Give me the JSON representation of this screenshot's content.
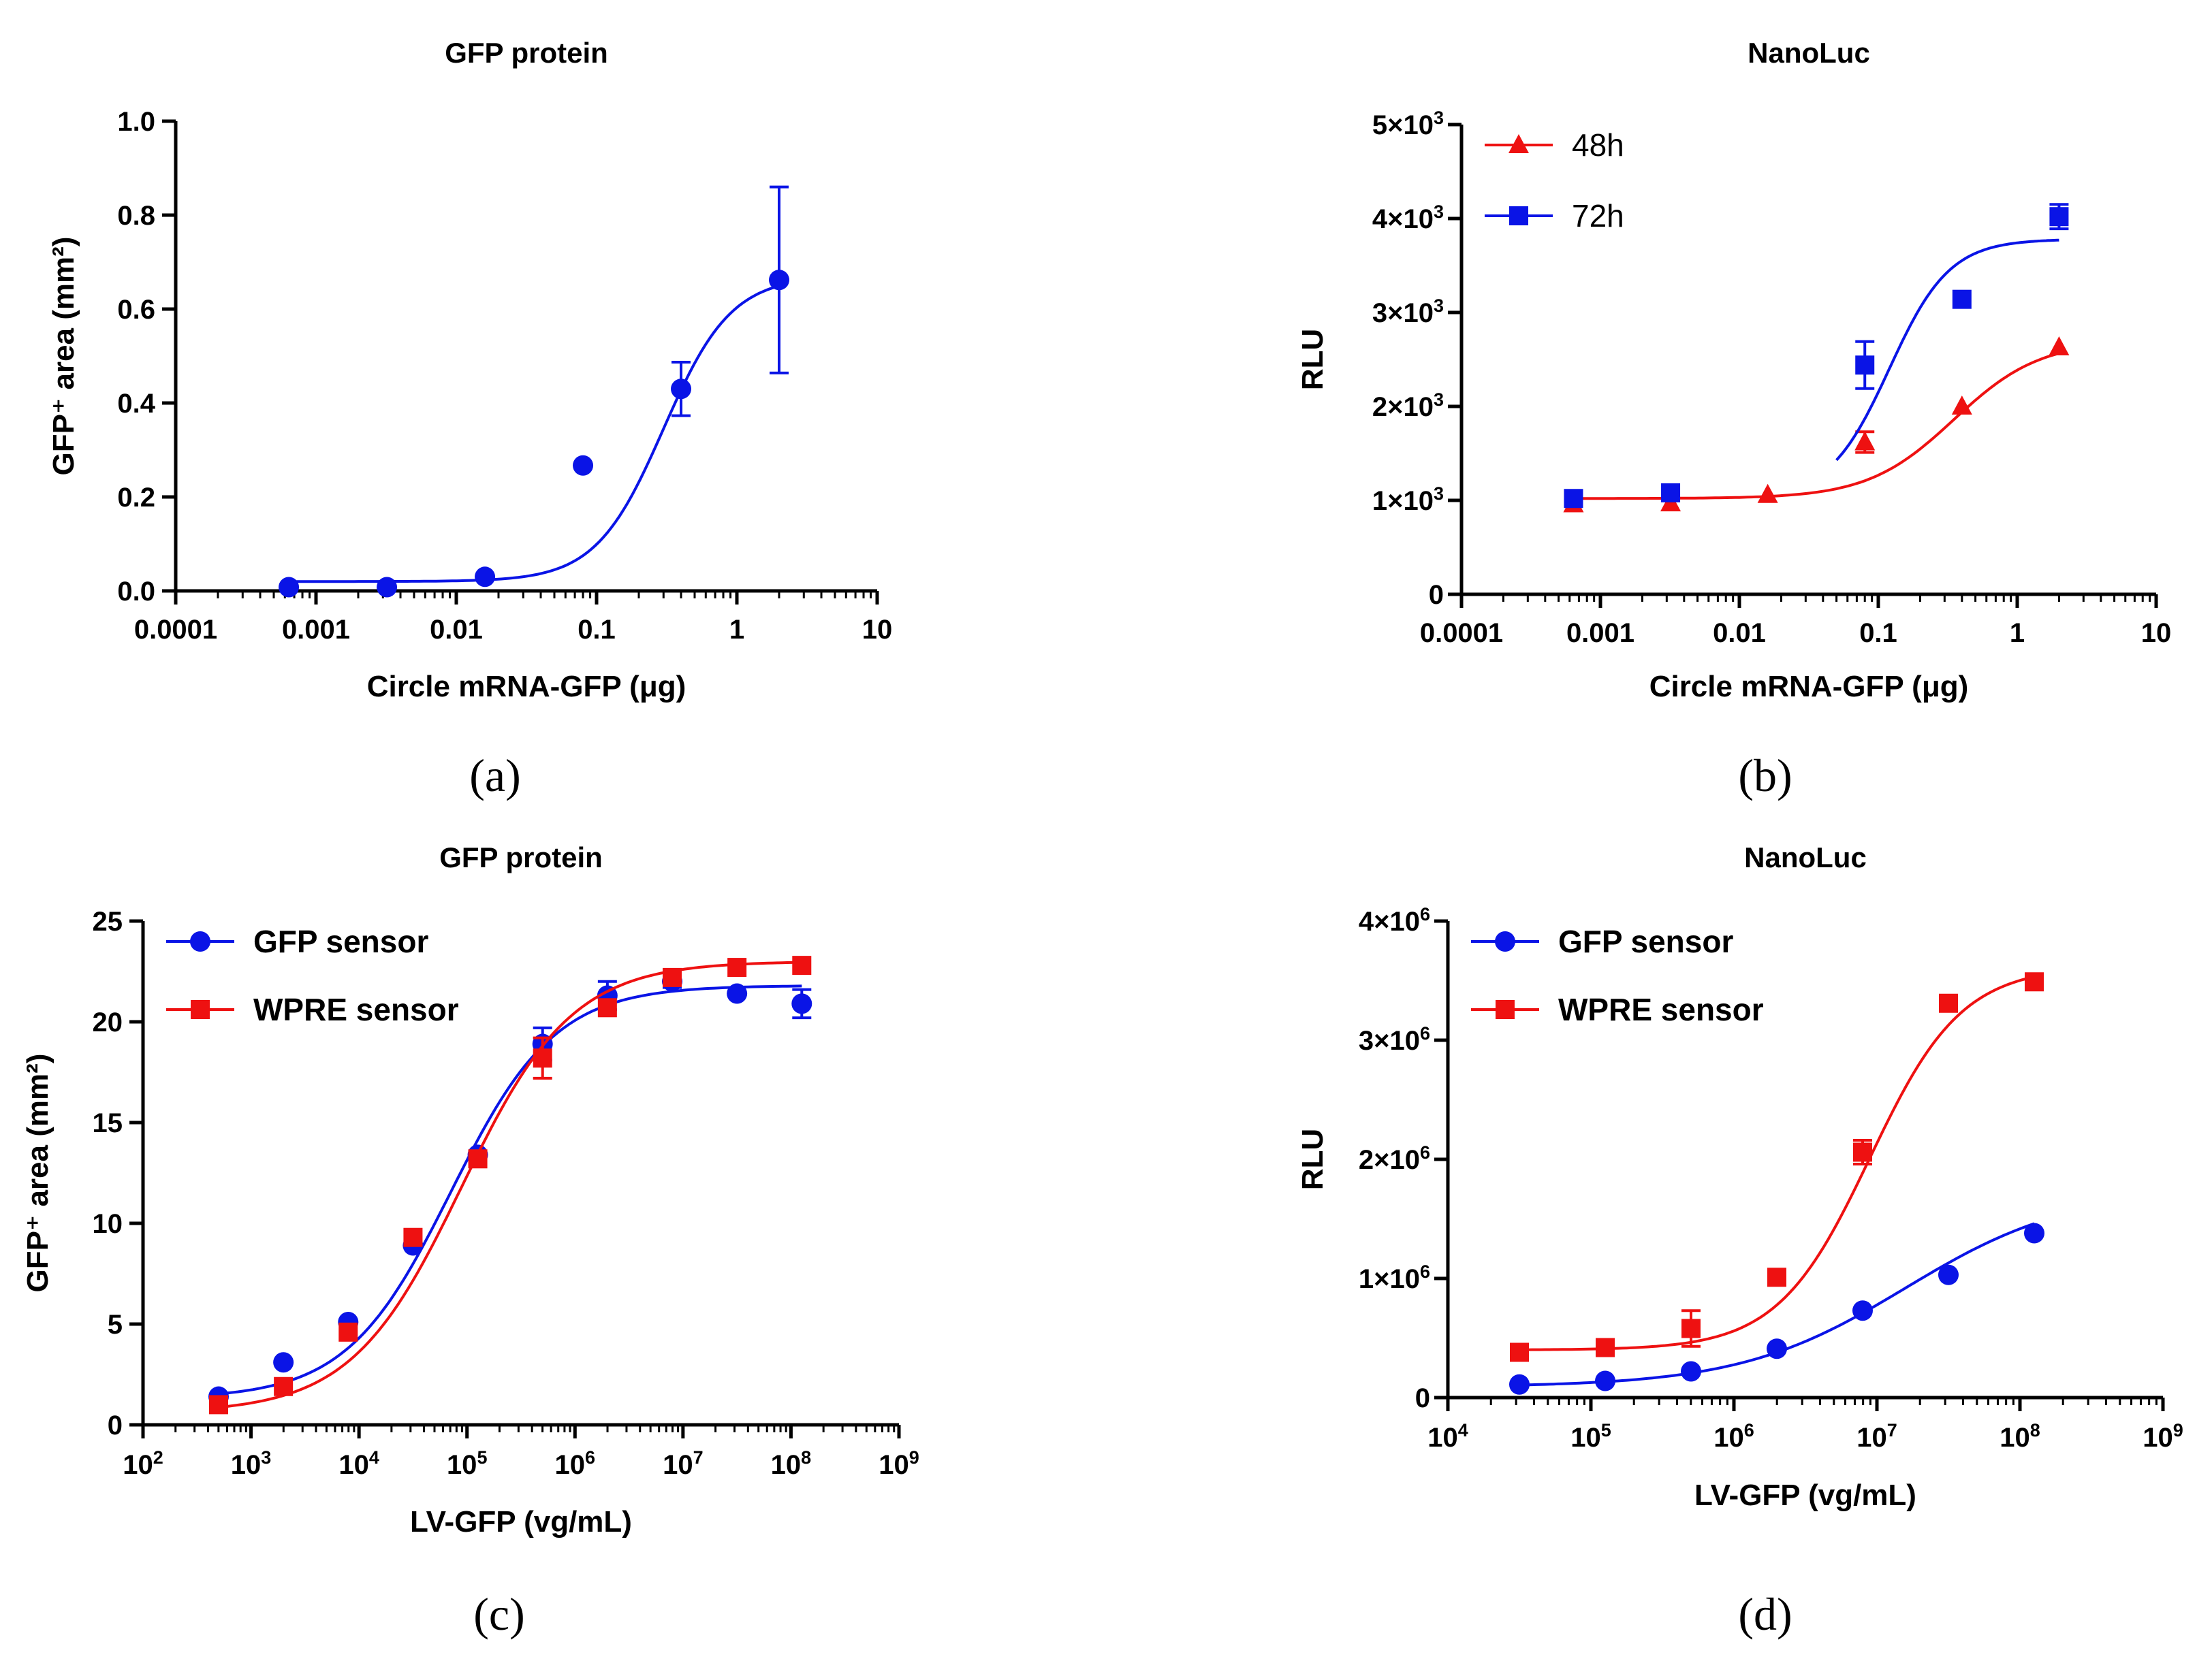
{
  "colors": {
    "blue": "#0a14e6",
    "red": "#ee1111",
    "axis": "#000000"
  },
  "panel_labels": [
    "(a)",
    "(b)",
    "(c)",
    "(d)"
  ],
  "chart_data": [
    {
      "type": "scatter",
      "title": "GFP protein",
      "xlabel": "Circle mRNA-GFP (μg)",
      "ylabel": "GFP⁺ area (mm²)",
      "xscale": "log",
      "xlim": [
        0.0001,
        10
      ],
      "ylim": [
        0,
        1.0
      ],
      "x_ticks": [
        "0.0001",
        "0.001",
        "0.01",
        "0.1",
        "1",
        "10"
      ],
      "y_ticks": [
        "0.0",
        "0.2",
        "0.4",
        "0.6",
        "0.8",
        "1.0"
      ],
      "series": [
        {
          "name": "GFP protein",
          "marker": "circle",
          "color": "blue",
          "x": [
            0.00064,
            0.0032,
            0.016,
            0.08,
            0.4,
            2.0
          ],
          "y": [
            0.008,
            0.008,
            0.03,
            0.267,
            0.43,
            0.662
          ],
          "err": [
            0,
            0,
            0,
            0,
            0.057,
            0.198
          ],
          "fit": {
            "bottom": 0.02,
            "top": 0.67,
            "ec50": 0.3,
            "hill": 1.8
          }
        }
      ]
    },
    {
      "type": "scatter",
      "title": "NanoLuc",
      "xlabel": "Circle mRNA-GFP (μg)",
      "ylabel": "RLU",
      "xscale": "log",
      "xlim": [
        0.0001,
        10
      ],
      "ylim": [
        0,
        5000
      ],
      "x_ticks": [
        "0.0001",
        "0.001",
        "0.01",
        "0.1",
        "1",
        "10"
      ],
      "y_ticks": [
        {
          "main": "0",
          "exp": ""
        },
        {
          "main": "1×10",
          "exp": "3"
        },
        {
          "main": "2×10",
          "exp": "3"
        },
        {
          "main": "3×10",
          "exp": "3"
        },
        {
          "main": "4×10",
          "exp": "3"
        },
        {
          "main": "5×10",
          "exp": "3"
        }
      ],
      "legend_position": "top-left",
      "series": [
        {
          "name": "48h",
          "marker": "triangle",
          "color": "red",
          "x": [
            0.00064,
            0.0032,
            0.016,
            0.08,
            0.4,
            2.0
          ],
          "y": [
            960,
            970,
            1060,
            1620,
            2000,
            2630
          ],
          "err": [
            0,
            0,
            0,
            110,
            0,
            0
          ],
          "fit": {
            "bottom": 1020,
            "top": 2700,
            "ec50": 0.35,
            "hill": 1.4,
            "xmin": 0.00064,
            "xmax": 2.0
          }
        },
        {
          "name": "72h",
          "marker": "square",
          "color": "blue",
          "x": [
            0.00064,
            0.0032,
            0.08,
            0.4,
            2.0
          ],
          "y": [
            1020,
            1080,
            2440,
            3140,
            4020
          ],
          "err": [
            0,
            0,
            250,
            0,
            130
          ],
          "fit": {
            "bottom": 1020,
            "top": 3780,
            "ec50": 0.12,
            "hill": 2.0,
            "xmin": 0.05,
            "xmax": 2.0
          }
        }
      ]
    },
    {
      "type": "scatter",
      "title": "GFP protein",
      "xlabel": "LV-GFP (vg/mL)",
      "ylabel": "GFP⁺ area (mm²)",
      "xscale": "log",
      "xlim_exp": [
        2,
        9
      ],
      "ylim": [
        0,
        25
      ],
      "x_ticks": [
        {
          "main": "10",
          "exp": "2"
        },
        {
          "main": "10",
          "exp": "3"
        },
        {
          "main": "10",
          "exp": "4"
        },
        {
          "main": "10",
          "exp": "5"
        },
        {
          "main": "10",
          "exp": "6"
        },
        {
          "main": "10",
          "exp": "7"
        },
        {
          "main": "10",
          "exp": "8"
        },
        {
          "main": "10",
          "exp": "9"
        }
      ],
      "y_ticks": [
        "0",
        "5",
        "10",
        "15",
        "20",
        "25"
      ],
      "legend_position": "top-left",
      "series": [
        {
          "name": "GFP sensor",
          "marker": "circle",
          "color": "blue",
          "logx": [
            2.7,
            3.3,
            3.9,
            4.5,
            5.1,
            5.7,
            6.3,
            6.9,
            7.5,
            8.1
          ],
          "y": [
            1.4,
            3.1,
            5.1,
            8.9,
            13.4,
            18.9,
            21.3,
            22.0,
            21.4,
            20.9
          ],
          "err": [
            0,
            0,
            0,
            0,
            0,
            0.8,
            0.7,
            0.3,
            0,
            0.7
          ],
          "fit": {
            "bottom": 1.3,
            "top": 21.8,
            "logec50": 4.85,
            "hill": 0.9
          }
        },
        {
          "name": "WPRE sensor",
          "marker": "square",
          "color": "red",
          "logx": [
            2.7,
            3.3,
            3.9,
            4.5,
            5.1,
            5.7,
            6.3,
            6.9,
            7.5,
            8.1
          ],
          "y": [
            1.0,
            1.9,
            4.6,
            9.3,
            13.2,
            18.2,
            20.7,
            22.2,
            22.7,
            22.8
          ],
          "err": [
            0,
            0,
            0,
            0,
            0,
            1.0,
            0,
            0,
            0,
            0
          ],
          "fit": {
            "bottom": 0.6,
            "top": 23.0,
            "logec50": 4.95,
            "hill": 0.85
          }
        }
      ]
    },
    {
      "type": "scatter",
      "title": "NanoLuc",
      "xlabel": "LV-GFP (vg/mL)",
      "ylabel": "RLU",
      "xscale": "log",
      "xlim_exp": [
        4,
        9
      ],
      "ylim": [
        0,
        4000000
      ],
      "x_ticks": [
        {
          "main": "10",
          "exp": "4"
        },
        {
          "main": "10",
          "exp": "5"
        },
        {
          "main": "10",
          "exp": "6"
        },
        {
          "main": "10",
          "exp": "7"
        },
        {
          "main": "10",
          "exp": "8"
        },
        {
          "main": "10",
          "exp": "9"
        }
      ],
      "y_ticks": [
        {
          "main": "0",
          "exp": ""
        },
        {
          "main": "1×10",
          "exp": "6"
        },
        {
          "main": "2×10",
          "exp": "6"
        },
        {
          "main": "3×10",
          "exp": "6"
        },
        {
          "main": "4×10",
          "exp": "6"
        }
      ],
      "legend_position": "top-left",
      "series": [
        {
          "name": "GFP sensor",
          "marker": "circle",
          "color": "blue",
          "logx": [
            4.5,
            5.1,
            5.7,
            6.3,
            6.9,
            7.5,
            8.1
          ],
          "y": [
            110000,
            140000,
            220000,
            410000,
            730000,
            1030000,
            1380000
          ],
          "err": [
            0,
            0,
            0,
            0,
            0,
            0,
            0
          ],
          "fit": {
            "bottom": 90000,
            "top": 1750000,
            "logec50": 7.2,
            "hill": 0.75
          }
        },
        {
          "name": "WPRE sensor",
          "marker": "square",
          "color": "red",
          "logx": [
            4.5,
            5.1,
            5.7,
            6.3,
            6.9,
            7.5,
            8.1
          ],
          "y": [
            380000,
            420000,
            580000,
            1010000,
            2060000,
            3310000,
            3490000
          ],
          "err": [
            0,
            0,
            150000,
            0,
            100000,
            0,
            0
          ],
          "fit": {
            "bottom": 400000,
            "top": 3620000,
            "logec50": 6.95,
            "hill": 1.35
          }
        }
      ]
    }
  ]
}
